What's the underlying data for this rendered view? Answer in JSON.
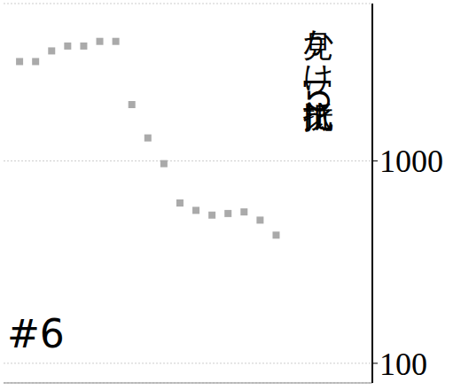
{
  "chart_data": {
    "type": "scatter",
    "title": "#6",
    "y_label": "見かけ比抵抗[Ω",
    "x": [
      1,
      2,
      3,
      4,
      5,
      6,
      7,
      8,
      9,
      10,
      11,
      12,
      13,
      14,
      15,
      16,
      17
    ],
    "values": [
      3100,
      3100,
      3500,
      3700,
      3700,
      3900,
      3900,
      1900,
      1300,
      970,
      620,
      570,
      540,
      550,
      560,
      510,
      430
    ],
    "color": "#aaaaaa",
    "marker": "square",
    "xlim": [
      0,
      23
    ],
    "ylim": [
      80,
      6000
    ],
    "yticks": [
      100,
      1000
    ],
    "log": "y",
    "grid": true,
    "tick_labels": "y"
  }
}
